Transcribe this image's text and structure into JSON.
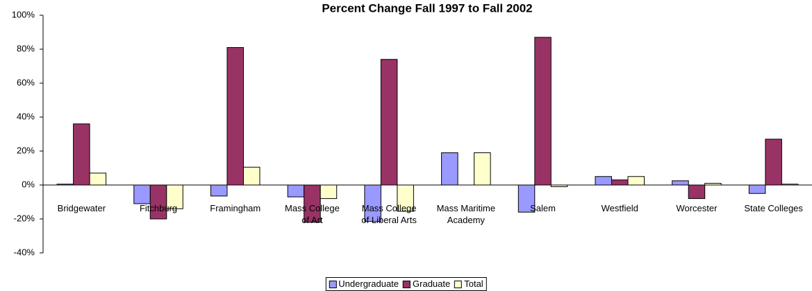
{
  "chart_data": {
    "type": "bar",
    "title": "Percent Change Fall 1997 to Fall 2002",
    "categories": [
      "Bridgewater",
      "Fitchburg",
      "Framingham",
      "Mass College\nof Art",
      "Mass College\nof Liberal Arts",
      "Mass Maritime\nAcademy",
      "Salem",
      "Westfield",
      "Worcester",
      "State Colleges"
    ],
    "series": [
      {
        "name": "Undergraduate",
        "color": "#9999ff",
        "values": [
          0.5,
          -11,
          -6.5,
          -7,
          -21.5,
          19,
          -16,
          5,
          2.5,
          -5
        ]
      },
      {
        "name": "Graduate",
        "color": "#993366",
        "values": [
          36,
          -20,
          81,
          -22,
          74,
          null,
          87,
          3,
          -8,
          27
        ]
      },
      {
        "name": "Total",
        "color": "#ffffcc",
        "values": [
          7,
          -14,
          10.5,
          -8,
          -15.5,
          19,
          -1,
          5,
          1,
          0.5
        ]
      }
    ],
    "ylim": [
      -40,
      100
    ],
    "yticks": [
      {
        "value": -40,
        "label": "-40%"
      },
      {
        "value": -20,
        "label": "-20%"
      },
      {
        "value": 0,
        "label": "0%"
      },
      {
        "value": 20,
        "label": "20%"
      },
      {
        "value": 40,
        "label": "40%"
      },
      {
        "value": 60,
        "label": "60%"
      },
      {
        "value": 80,
        "label": "80%"
      },
      {
        "value": 100,
        "label": "100%"
      }
    ],
    "grid": false,
    "legend": "bottom"
  }
}
